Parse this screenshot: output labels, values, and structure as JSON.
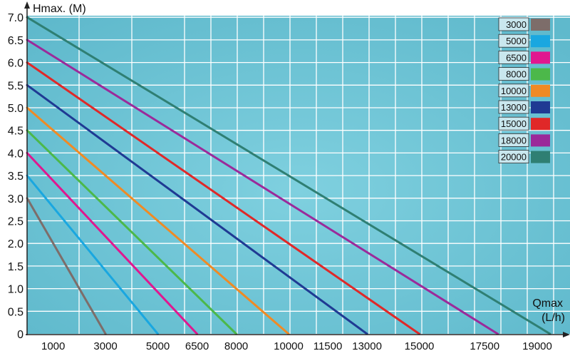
{
  "chart_data": {
    "type": "line",
    "ylabel": "Hmax. (M)",
    "xlabel_line1": "Qmax",
    "xlabel_line2": "(L/h)",
    "y_ticks": [
      "0",
      "0.5",
      "1.0",
      "1.5",
      "2.0",
      "2.5",
      "3.0",
      "3.5",
      "4.0",
      "4.5",
      "5.0",
      "5.5",
      "6.0",
      "6.5",
      "7.0"
    ],
    "x_ticks": [
      "1000",
      "3000",
      "5000",
      "6500",
      "8000",
      "10000",
      "11500",
      "13000",
      "15000",
      "17500",
      "19000"
    ],
    "x_tick_values": [
      1000,
      3000,
      5000,
      6500,
      8000,
      10000,
      11500,
      13000,
      15000,
      17500,
      19000
    ],
    "ylim": [
      0,
      7.0
    ],
    "grid": true,
    "legend_position": "top-right",
    "background_color": "#69c3d3",
    "series": [
      {
        "name": "3000",
        "color": "#7d6d6a",
        "x": [
          0,
          3000
        ],
        "y": [
          3.0,
          0
        ]
      },
      {
        "name": "5000",
        "color": "#1aa7e0",
        "x": [
          0,
          5000
        ],
        "y": [
          3.5,
          0
        ]
      },
      {
        "name": "6500",
        "color": "#e0178f",
        "x": [
          0,
          6500
        ],
        "y": [
          4.0,
          0
        ]
      },
      {
        "name": "8000",
        "color": "#4cb84a",
        "x": [
          0,
          8000
        ],
        "y": [
          4.5,
          0
        ]
      },
      {
        "name": "10000",
        "color": "#f08a24",
        "x": [
          0,
          10000
        ],
        "y": [
          5.0,
          0
        ]
      },
      {
        "name": "13000",
        "color": "#1f3a93",
        "x": [
          0,
          13000
        ],
        "y": [
          5.5,
          0
        ]
      },
      {
        "name": "15000",
        "color": "#e02828",
        "x": [
          0,
          15000
        ],
        "y": [
          6.0,
          0
        ]
      },
      {
        "name": "18000",
        "color": "#9b2a9a",
        "x": [
          0,
          18000
        ],
        "y": [
          6.5,
          0
        ]
      },
      {
        "name": "20000",
        "color": "#2f7f73",
        "x": [
          0,
          20000
        ],
        "y": [
          7.0,
          0
        ]
      }
    ]
  }
}
